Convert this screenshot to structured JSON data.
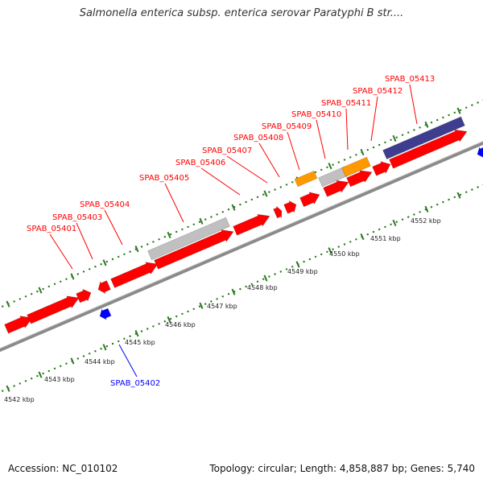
{
  "title": "Salmonella enterica subsp. enterica serovar Paratyphi B str....",
  "footer": {
    "accession": "Accession: NC_010102",
    "summary": "Topology: circular; Length: 4,858,887 bp; Genes: 5,740"
  },
  "colors": {
    "gene_red": "#ff0000",
    "gene_blue": "#0000ff",
    "gene_gray": "#c0c0c0",
    "gene_orange": "#ff9900",
    "gene_purple": "#3e3d8f",
    "tick_green": "#2a7a1e",
    "backbone": "#999999"
  },
  "ticks": [
    {
      "label": "4542 kbp"
    },
    {
      "label": "4543 kbp"
    },
    {
      "label": "4544 kbp"
    },
    {
      "label": "4545 kbp"
    },
    {
      "label": "4546 kbp"
    },
    {
      "label": "4547 kbp"
    },
    {
      "label": "4548 kbp"
    },
    {
      "label": "4549 kbp"
    },
    {
      "label": "4550 kbp"
    },
    {
      "label": "4551 kbp"
    },
    {
      "label": "4552 kbp"
    }
  ],
  "genes": [
    {
      "label": "SPAB_05401",
      "color": "red"
    },
    {
      "label": "SPAB_05402",
      "color": "blue"
    },
    {
      "label": "SPAB_05403",
      "color": "red"
    },
    {
      "label": "SPAB_05404",
      "color": "red"
    },
    {
      "label": "SPAB_05405",
      "color": "red"
    },
    {
      "label": "SPAB_05406",
      "color": "red"
    },
    {
      "label": "SPAB_05407",
      "color": "red"
    },
    {
      "label": "SPAB_05408",
      "color": "red"
    },
    {
      "label": "SPAB_05409",
      "color": "red"
    },
    {
      "label": "SPAB_05410",
      "color": "red"
    },
    {
      "label": "SPAB_05411",
      "color": "red"
    },
    {
      "label": "SPAB_05412",
      "color": "red"
    },
    {
      "label": "SPAB_05413",
      "color": "red"
    }
  ]
}
